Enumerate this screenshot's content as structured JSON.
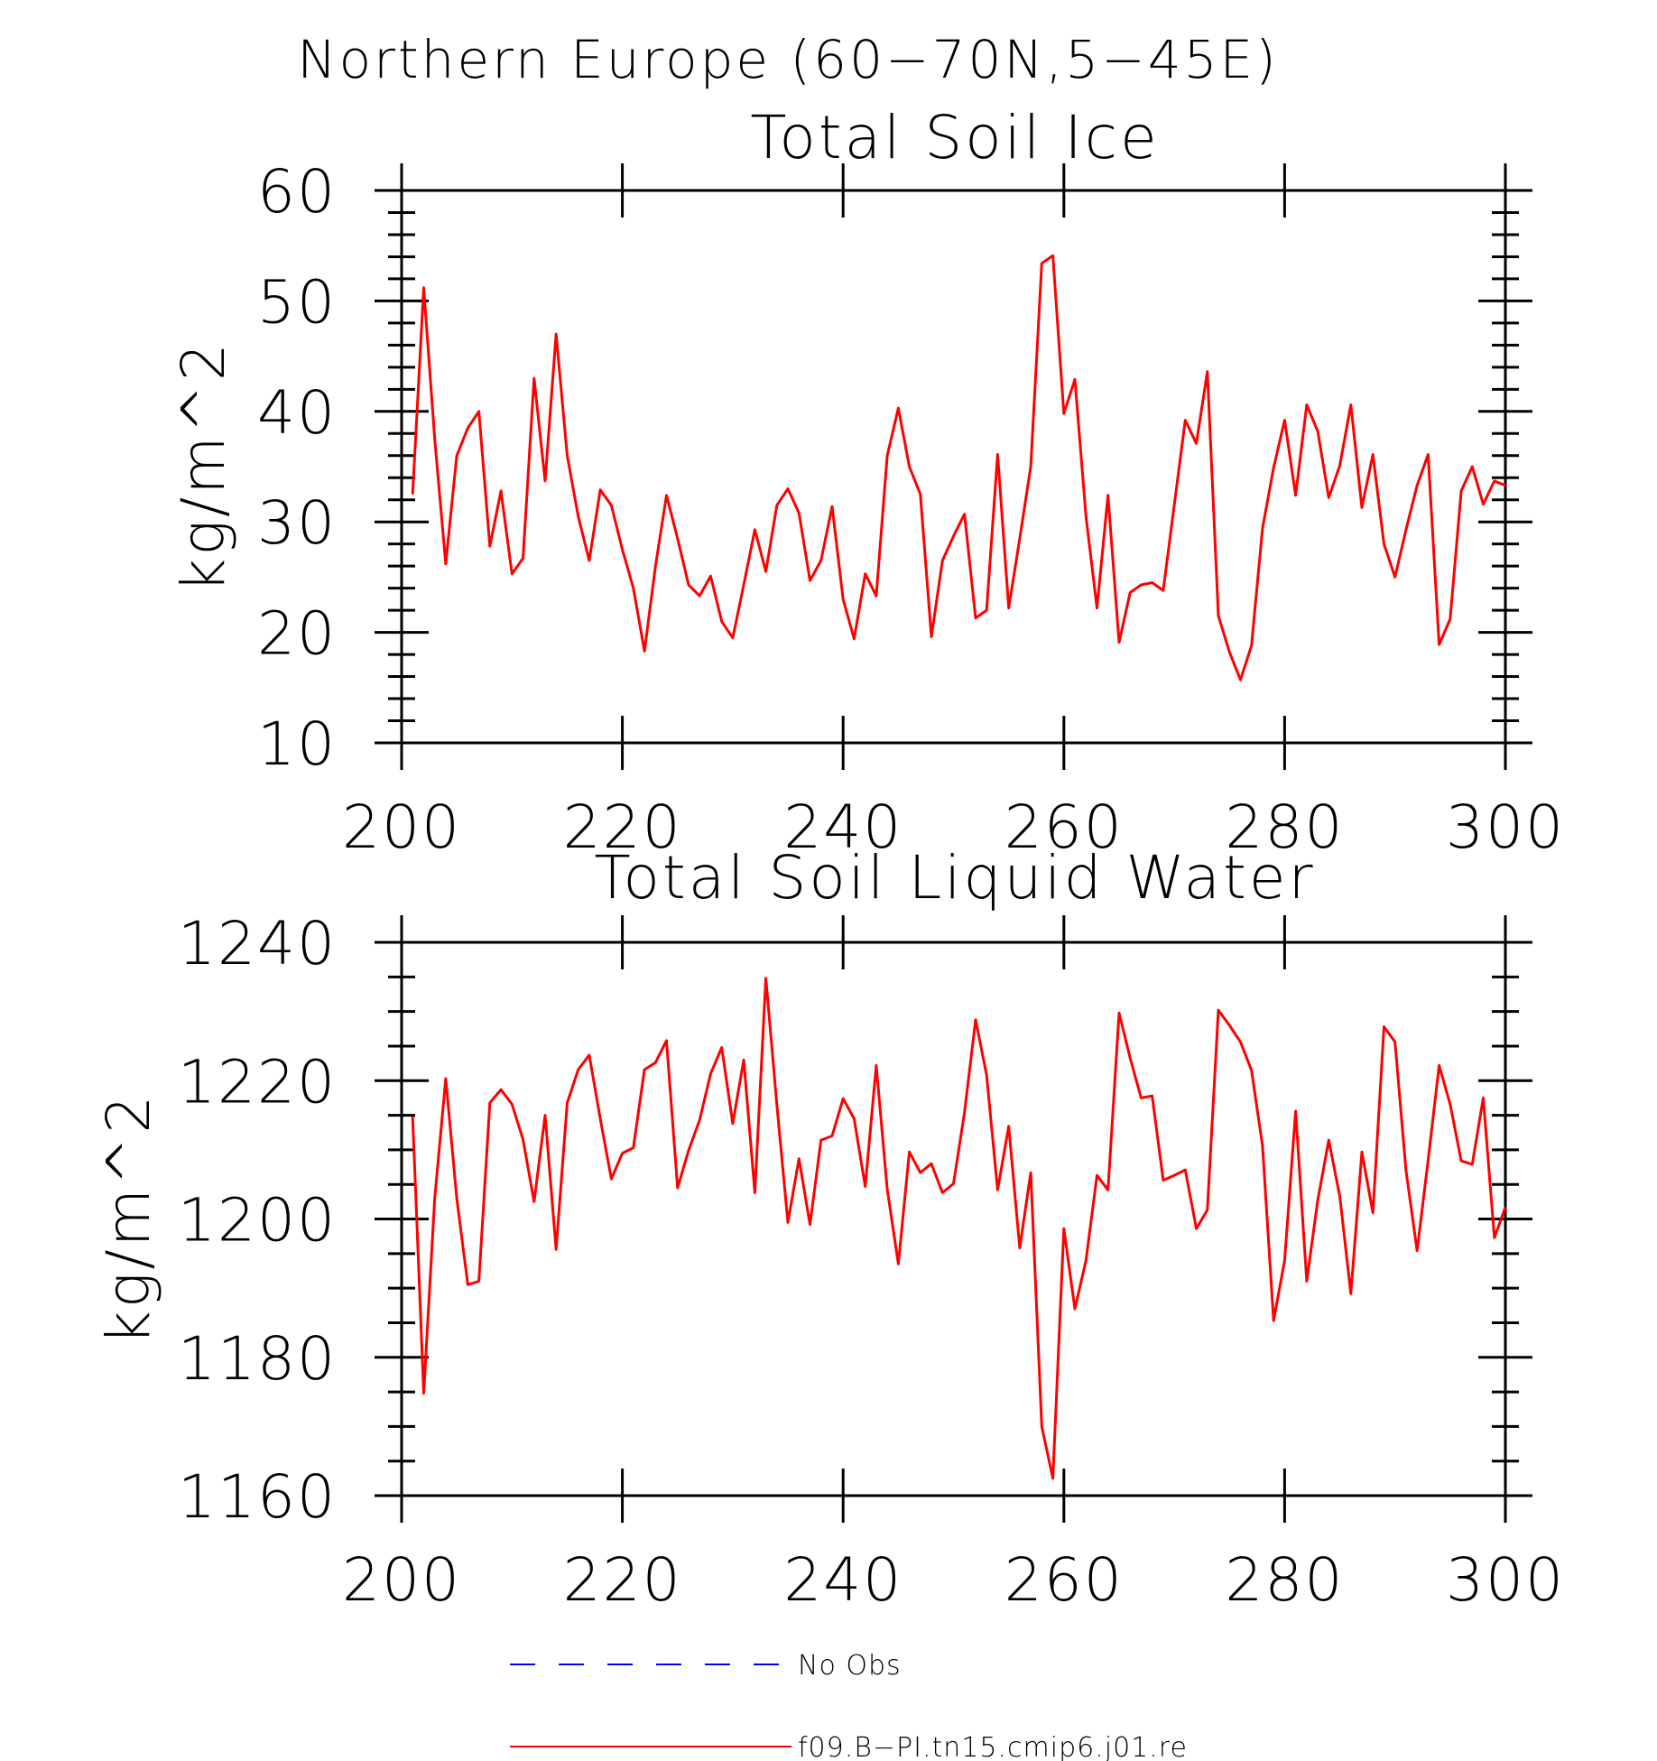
{
  "figure_title": "Northern Europe (60−70N,5−45E)",
  "chart_data": [
    {
      "type": "line",
      "title": "Total Soil Ice",
      "ylabel": "kg/m^2",
      "xlabel": "",
      "xlim": [
        200,
        300
      ],
      "ylim": [
        10,
        60
      ],
      "x_ticks": [
        200,
        220,
        240,
        260,
        280,
        300
      ],
      "y_ticks": [
        10,
        20,
        30,
        40,
        50,
        60
      ],
      "grid": false,
      "series": [
        {
          "name": "f09.B−PI.tn15.cmip6.j01.re",
          "color": "#ff0000",
          "x_start": 201,
          "x_step": 1,
          "values": [
            32.5,
            51.2,
            37.5,
            26.2,
            36.0,
            38.5,
            40.0,
            27.8,
            32.8,
            25.3,
            26.7,
            43.0,
            33.7,
            47.0,
            36.0,
            30.5,
            26.5,
            32.9,
            31.5,
            27.5,
            24.0,
            18.3,
            26.0,
            32.4,
            28.5,
            24.3,
            23.3,
            25.1,
            21.0,
            19.5,
            24.3,
            29.3,
            25.5,
            31.5,
            33.0,
            30.8,
            24.7,
            26.5,
            31.4,
            23.0,
            19.4,
            25.3,
            23.3,
            36.0,
            40.3,
            35.0,
            32.5,
            19.6,
            26.5,
            28.7,
            30.7,
            21.3,
            22.0,
            36.1,
            22.2,
            28.5,
            35.0,
            53.4,
            54.1,
            39.8,
            42.9,
            30.5,
            22.2,
            32.4,
            19.1,
            23.6,
            24.3,
            24.5,
            23.8,
            31.5,
            39.2,
            37.1,
            43.6,
            21.5,
            18.2,
            15.7,
            18.8,
            29.4,
            34.9,
            39.2,
            32.4,
            40.6,
            38.2,
            32.2,
            35.1,
            40.6,
            31.3,
            36.1,
            28.0,
            25.0,
            29.3,
            33.3,
            36.1,
            18.9,
            21.2,
            32.8,
            35.0,
            31.6,
            33.7,
            33.3
          ]
        }
      ]
    },
    {
      "type": "line",
      "title": "Total Soil Liquid Water",
      "ylabel": "kg/m^2",
      "xlabel": "",
      "xlim": [
        200,
        300
      ],
      "ylim": [
        1160,
        1240
      ],
      "x_ticks": [
        200,
        220,
        240,
        260,
        280,
        300
      ],
      "y_ticks": [
        1160,
        1180,
        1200,
        1220,
        1240
      ],
      "grid": false,
      "series": [
        {
          "name": "f09.B−PI.tn15.cmip6.j01.re",
          "color": "#ff0000",
          "x_start": 201,
          "x_step": 1,
          "values": [
            1214.8,
            1174.8,
            1203.0,
            1220.3,
            1203.0,
            1190.5,
            1191.0,
            1216.8,
            1218.7,
            1216.6,
            1211.5,
            1202.5,
            1215.0,
            1195.6,
            1216.8,
            1221.6,
            1223.7,
            1214.5,
            1205.8,
            1209.5,
            1210.3,
            1221.6,
            1222.6,
            1225.8,
            1204.5,
            1209.9,
            1214.3,
            1221.0,
            1224.8,
            1213.8,
            1223.0,
            1203.8,
            1234.8,
            1216.5,
            1199.5,
            1208.7,
            1199.2,
            1211.4,
            1212.0,
            1217.4,
            1214.5,
            1204.7,
            1222.2,
            1204.3,
            1193.5,
            1209.7,
            1206.7,
            1208.0,
            1203.8,
            1205.1,
            1215.4,
            1228.8,
            1220.8,
            1204.2,
            1213.4,
            1195.8,
            1206.7,
            1170.0,
            1162.5,
            1198.6,
            1187.0,
            1194.0,
            1206.3,
            1204.2,
            1229.8,
            1223.3,
            1217.5,
            1217.8,
            1205.6,
            1206.3,
            1207.1,
            1198.6,
            1201.3,
            1230.2,
            1228.0,
            1225.6,
            1221.5,
            1210.6,
            1185.3,
            1194.0,
            1215.6,
            1191.0,
            1202.7,
            1211.4,
            1203.3,
            1189.2,
            1209.7,
            1200.9,
            1227.8,
            1225.6,
            1207.0,
            1195.4,
            1208.5,
            1222.2,
            1216.6,
            1208.4,
            1207.9,
            1217.5,
            1197.3,
            1201.7
          ]
        }
      ]
    }
  ],
  "legend": {
    "placement": "bottom",
    "entries": [
      {
        "label": "No Obs",
        "color": "#0000ff",
        "style": "dashed"
      },
      {
        "label": "f09.B−PI.tn15.cmip6.j01.re",
        "color": "#ff0000",
        "style": "solid"
      }
    ]
  }
}
